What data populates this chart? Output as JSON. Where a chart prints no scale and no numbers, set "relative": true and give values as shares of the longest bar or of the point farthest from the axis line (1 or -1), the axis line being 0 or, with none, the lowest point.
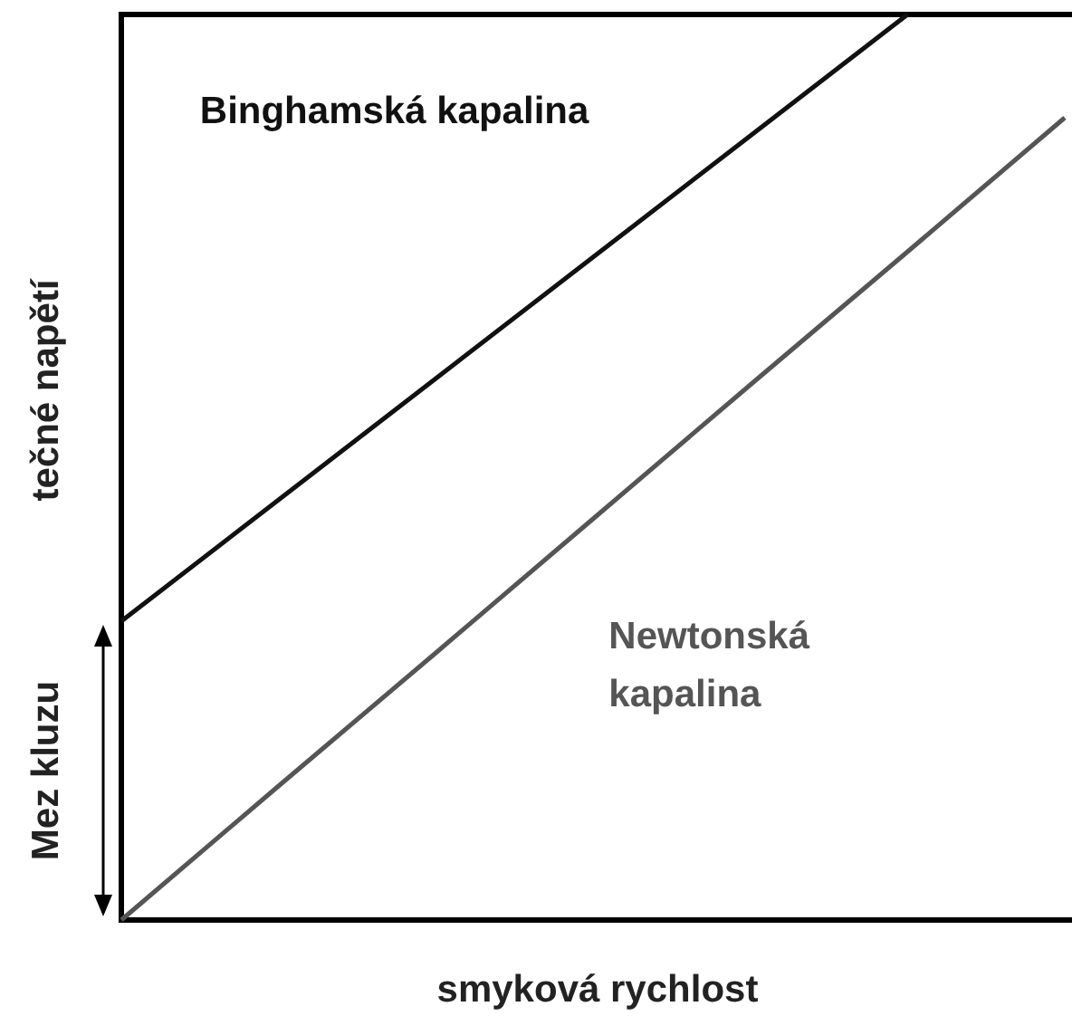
{
  "chart_data": {
    "type": "line",
    "relative": true,
    "xlabel": "smyková rychlost",
    "ylabel": "tečné napětí",
    "annotations": [
      "Mez kluzu"
    ],
    "legend": false,
    "categories": [
      null,
      null,
      null,
      null,
      null,
      null,
      null
    ],
    "series": [
      {
        "name": "Binghamská kapalina",
        "color": "#111111",
        "values": [
          0.33,
          0.464,
          0.598,
          0.732,
          0.866,
          1.0,
          null
        ]
      },
      {
        "name": "Newtonská kapalina",
        "color": "#555555",
        "values": [
          0,
          0.148,
          0.295,
          0.443,
          0.591,
          0.738,
          0.886
        ]
      }
    ]
  }
}
